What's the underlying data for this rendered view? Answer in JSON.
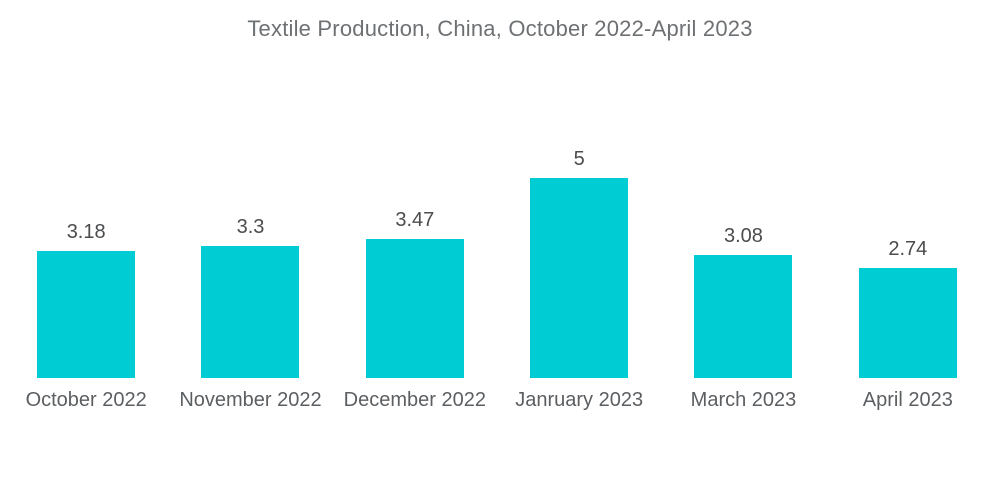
{
  "chart_data": {
    "type": "bar",
    "title": "Textile Production, China, October 2022-April 2023",
    "categories": [
      "October 2022",
      "November 2022",
      "December 2022",
      "Janruary 2023",
      "March 2023",
      "April 2023"
    ],
    "values": [
      3.18,
      3.3,
      3.47,
      5,
      3.08,
      2.74
    ],
    "value_labels": [
      "3.18",
      "3.3",
      "3.47",
      "5",
      "3.08",
      "2.74"
    ],
    "xlabel": "",
    "ylabel": "",
    "ylim": [
      0,
      5
    ],
    "grid": false,
    "legend": null,
    "axes_visible": false,
    "bar_color": "#00CCD4"
  },
  "colors": {
    "background": "#FFFFFF",
    "bar": "#00CCD4",
    "title_text": "#6E7174",
    "value_text": "#4A4C4E",
    "category_text": "#5C5F62"
  }
}
